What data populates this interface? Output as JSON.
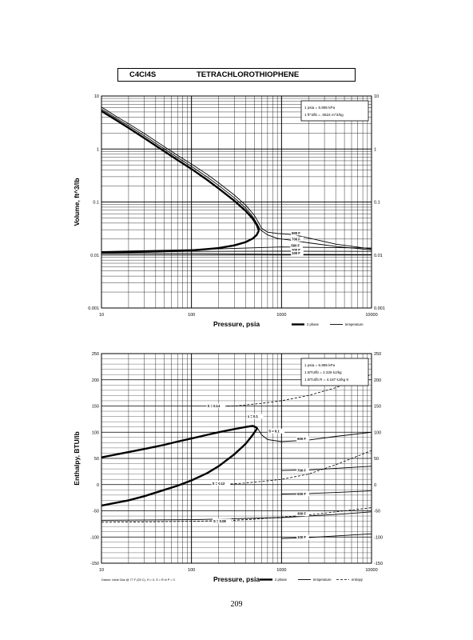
{
  "header": {
    "formula": "C4Cl4S",
    "name": "TETRACHLOROTHIOPHENE"
  },
  "page_number": "209",
  "chart_data": [
    {
      "type": "line",
      "xlabel": "Pressure,  psia",
      "ylabel": "Volume, ft^3/lb",
      "log_x": true,
      "log_y": true,
      "xlim": [
        10,
        10000
      ],
      "ylim": [
        0.001,
        10
      ],
      "x_ticks": [
        "10",
        "100",
        "1000",
        "10000"
      ],
      "y_ticks": [
        "0.001",
        "0.01",
        "0.1",
        "1",
        "10"
      ],
      "y_ticks_right": [
        "0.001",
        "0.01",
        "0.1",
        "1",
        "10"
      ],
      "grid": true,
      "legend_position": "bottom-right",
      "legend": [
        "2 phase",
        "temperature"
      ],
      "info_box": [
        "1 psia = 6.895 kPa",
        "1 ft^3/lb = .0624 m^3/kg"
      ],
      "curve_labels": [
        {
          "text": "900 F",
          "x": 1300,
          "y": 0.0245
        },
        {
          "text": "700 F",
          "x": 1300,
          "y": 0.019
        },
        {
          "text": "500 F",
          "x": 1280,
          "y": 0.0142
        },
        {
          "text": "300 F",
          "x": 1300,
          "y": 0.0118
        },
        {
          "text": "100 F",
          "x": 1300,
          "y": 0.0103
        }
      ],
      "series": [
        {
          "role": "2 phase",
          "x": [
            10,
            15,
            20,
            30,
            50,
            70,
            100,
            150,
            200,
            300,
            400,
            480,
            530,
            560
          ],
          "y": [
            5.2,
            3.4,
            2.5,
            1.6,
            0.9,
            0.62,
            0.42,
            0.26,
            0.18,
            0.105,
            0.068,
            0.048,
            0.037,
            0.029
          ]
        },
        {
          "role": "2 phase",
          "x": [
            10,
            30,
            100,
            200,
            300,
            400,
            480,
            530,
            560
          ],
          "y": [
            0.0112,
            0.0115,
            0.0122,
            0.0135,
            0.0152,
            0.0175,
            0.0205,
            0.024,
            0.029
          ]
        },
        {
          "role": "temperature",
          "x": [
            10,
            15,
            20,
            30,
            50,
            70,
            100,
            150,
            200,
            300,
            400,
            500,
            560,
            600,
            700,
            900,
            1300,
            2000,
            4000,
            10000
          ],
          "y": [
            6.2,
            4.0,
            3.0,
            1.95,
            1.1,
            0.76,
            0.52,
            0.33,
            0.23,
            0.135,
            0.087,
            0.056,
            0.04,
            0.032,
            0.027,
            0.0255,
            0.0245,
            0.021,
            0.016,
            0.013
          ]
        },
        {
          "role": "temperature",
          "x": [
            10,
            15,
            20,
            30,
            50,
            70,
            100,
            150,
            200,
            300,
            400,
            480,
            540,
            580,
            700,
            900,
            1300,
            2000,
            4000,
            10000
          ],
          "y": [
            5.7,
            3.7,
            2.75,
            1.78,
            1.0,
            0.69,
            0.47,
            0.295,
            0.205,
            0.12,
            0.077,
            0.053,
            0.038,
            0.03,
            0.024,
            0.0205,
            0.019,
            0.017,
            0.0145,
            0.0125
          ]
        },
        {
          "role": "temperature",
          "x": [
            10,
            100,
            1000,
            10000
          ],
          "y": [
            0.0116,
            0.0126,
            0.0142,
            0.0135
          ]
        },
        {
          "role": "temperature",
          "x": [
            10,
            100,
            1000,
            10000
          ],
          "y": [
            0.0112,
            0.0117,
            0.0118,
            0.0117
          ]
        },
        {
          "role": "temperature",
          "x": [
            10,
            100,
            1000,
            10000
          ],
          "y": [
            0.0107,
            0.0107,
            0.0103,
            0.0102
          ]
        }
      ]
    },
    {
      "type": "line",
      "xlabel": "Pressure,  psia",
      "ylabel": "Enthalpy, BTU/lb",
      "log_x": true,
      "xlim": [
        10,
        10000
      ],
      "ylim": [
        -150,
        250
      ],
      "x_ticks": [
        "10",
        "100",
        "1000",
        "10000"
      ],
      "y_ticks": [
        "-150",
        "-100",
        "-50",
        "0",
        "50",
        "100",
        "150",
        "200",
        "250"
      ],
      "y_ticks_right": [
        "-150",
        "-100",
        "-50",
        "0",
        "50",
        "100",
        "150",
        "200",
        "250"
      ],
      "grid": true,
      "legend_position": "bottom-right",
      "legend": [
        "2 phase",
        "temperature",
        "entropy"
      ],
      "info_box": [
        "1 psia = 6.895 kPa",
        "1 BTU/lb = 2.326 kJ/kg",
        "1 BTU/lb R = 4.187 kJ/kg K"
      ],
      "datum": "Datum: Ideal Gas @ 77 F (25 C),  H = 0,  S = R ln P = 0",
      "curve_labels": [
        {
          "text": "S = 0.14",
          "x": 150,
          "y": 148
        },
        {
          "text": "S = 0.12",
          "x": 170,
          "y": 0
        },
        {
          "text": "S = 0.1",
          "x": 720,
          "y": 100
        },
        {
          "text": "S = 0.08",
          "x": 175,
          "y": -72
        },
        {
          "text": "900 F",
          "x": 1500,
          "y": 85
        },
        {
          "text": "700 F",
          "x": 1500,
          "y": 25
        },
        {
          "text": "500 F",
          "x": 1500,
          "y": -20
        },
        {
          "text": "300 F",
          "x": 1500,
          "y": -58
        },
        {
          "text": "100 F",
          "x": 1500,
          "y": -103
        },
        {
          "text": "x = 0.1",
          "x": 420,
          "y": 128
        }
      ],
      "series": [
        {
          "role": "2 phase",
          "x": [
            10,
            20,
            30,
            50,
            70,
            100,
            150,
            200,
            300,
            400,
            480,
            540
          ],
          "y": [
            52,
            62,
            68,
            76,
            82,
            88,
            95,
            100,
            106,
            110,
            112,
            108
          ]
        },
        {
          "role": "2 phase",
          "x": [
            10,
            20,
            30,
            50,
            70,
            100,
            150,
            200,
            300,
            400,
            480,
            540
          ],
          "y": [
            -40,
            -30,
            -22,
            -10,
            -2,
            8,
            22,
            35,
            58,
            78,
            95,
            108
          ]
        },
        {
          "role": "temperature",
          "x": [
            540,
            600,
            700,
            1000,
            2000,
            4000,
            10000
          ],
          "y": [
            108,
            95,
            86,
            82,
            85,
            92,
            100
          ]
        },
        {
          "role": "temperature",
          "x": [
            1000,
            2000,
            4000,
            10000
          ],
          "y": [
            27,
            28,
            31,
            35
          ]
        },
        {
          "role": "temperature",
          "x": [
            1000,
            2000,
            4000,
            10000
          ],
          "y": [
            -18,
            -17,
            -15,
            -12
          ]
        },
        {
          "role": "temperature",
          "x": [
            10,
            100,
            1000,
            2000,
            4000,
            10000
          ],
          "y": [
            -68,
            -67,
            -63,
            -60,
            -57,
            -52
          ]
        },
        {
          "role": "temperature",
          "x": [
            1000,
            2000,
            4000,
            10000
          ],
          "y": [
            -103,
            -101,
            -98,
            -94
          ]
        },
        {
          "role": "entropy",
          "x": [
            10,
            30,
            100,
            200,
            300,
            500,
            1000,
            2000,
            4000,
            10000
          ],
          "y": [
            -72,
            -71,
            -70,
            -69,
            -68,
            -66,
            -62,
            -58,
            -52,
            -44
          ]
        },
        {
          "role": "entropy",
          "x": [
            200,
            400,
            1000,
            2000,
            4000,
            10000
          ],
          "y": [
            0,
            3,
            10,
            20,
            38,
            65
          ]
        },
        {
          "role": "entropy",
          "x": [
            150,
            300,
            600,
            1000,
            2000,
            4000,
            10000
          ],
          "y": [
            148,
            150,
            155,
            160,
            170,
            185,
            210
          ]
        }
      ]
    }
  ]
}
